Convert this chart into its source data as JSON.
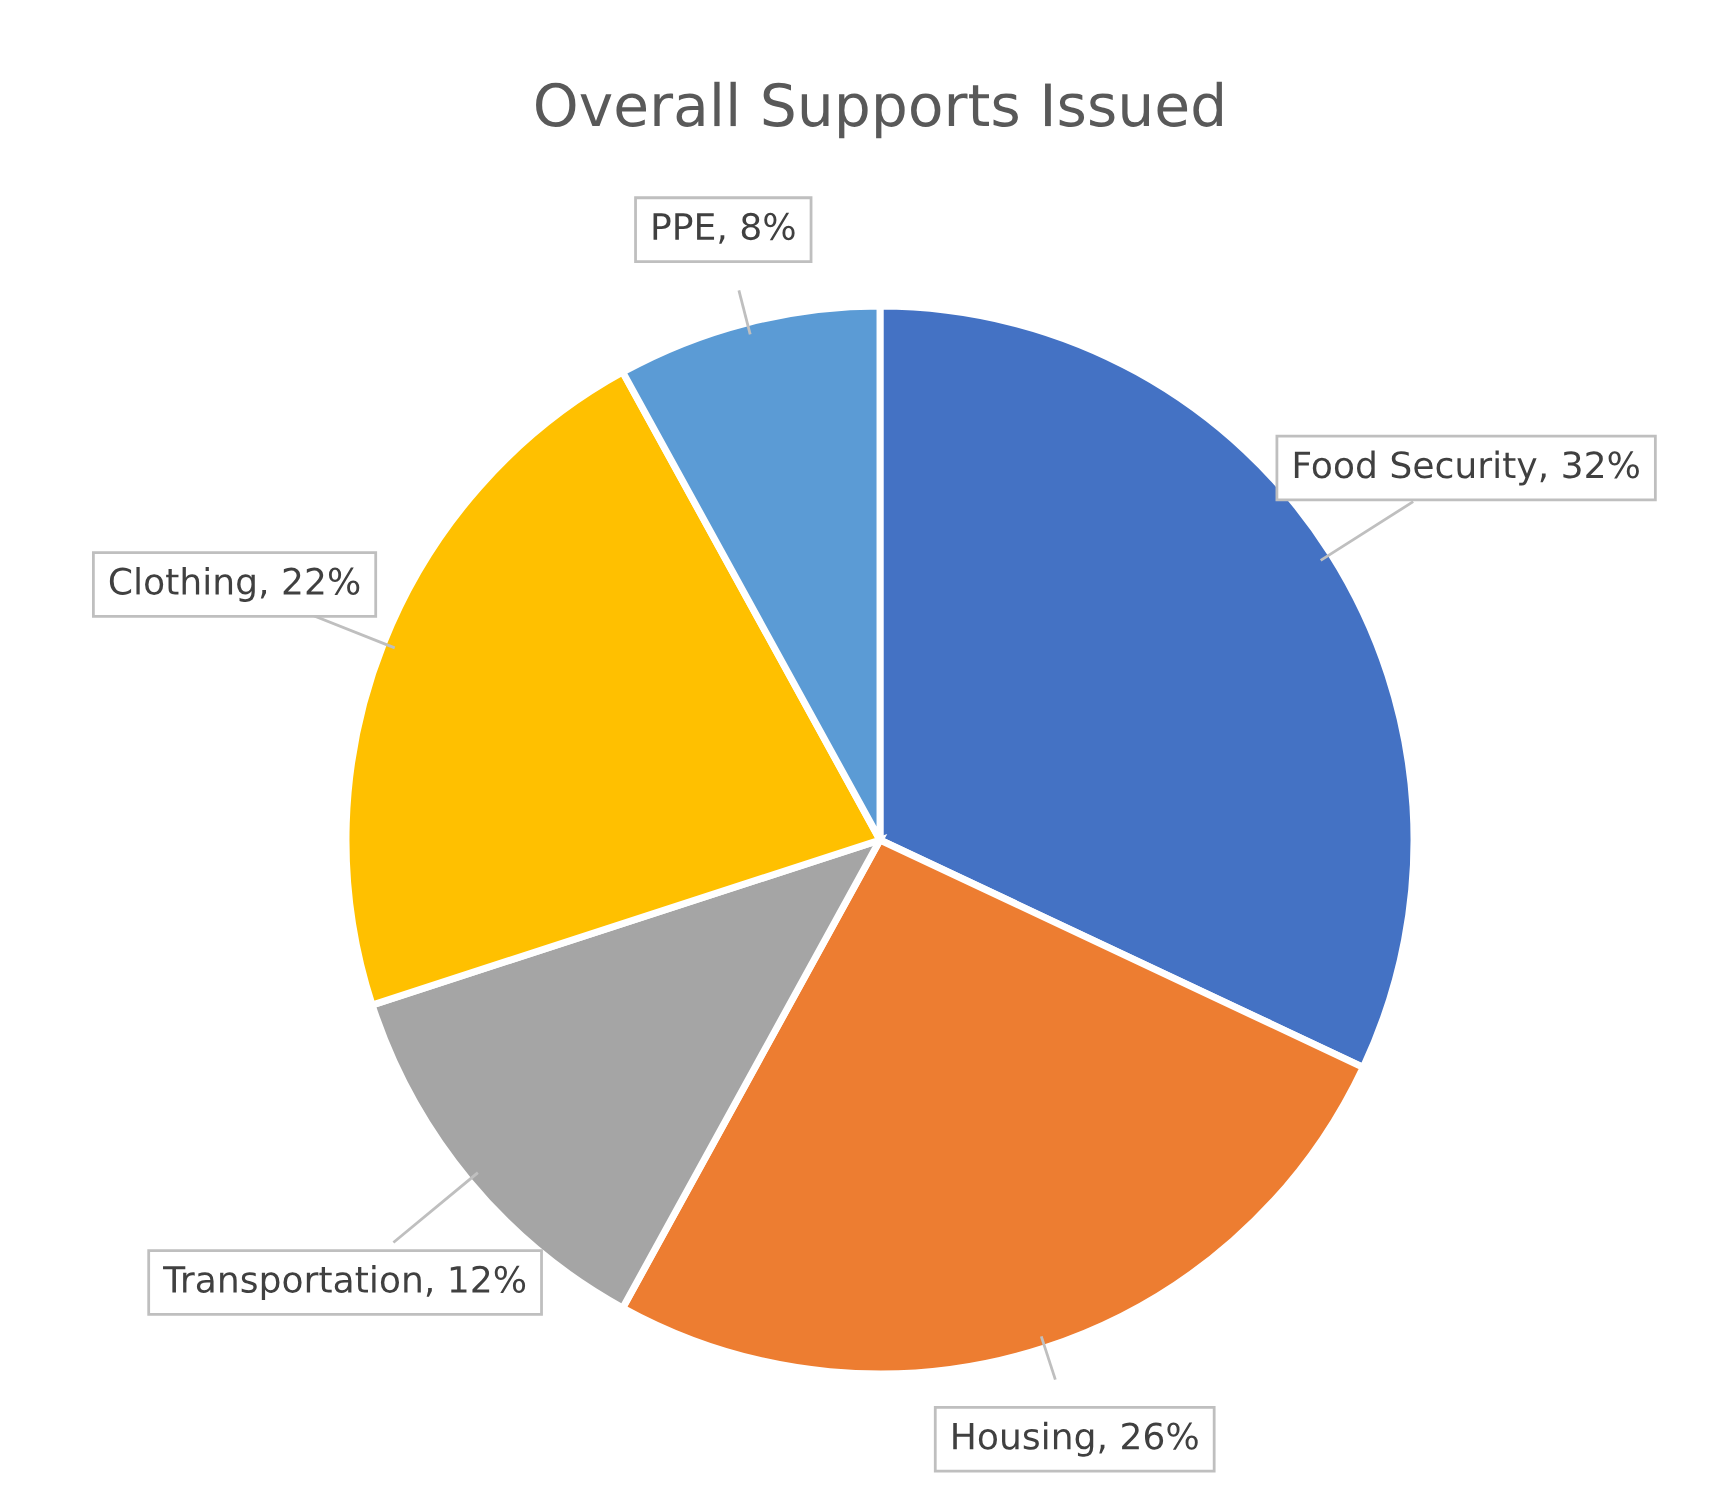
{
  "chart_data": {
    "type": "pie",
    "title": "Overall Supports Issued",
    "categories": [
      "Food Security",
      "Housing",
      "Transportation",
      "Clothing",
      "PPE"
    ],
    "values": [
      32,
      26,
      12,
      22,
      8
    ],
    "value_labels": [
      "32%",
      "26%",
      "12%",
      "22%",
      "8%"
    ],
    "colors": [
      "#4472c4",
      "#ed7d31",
      "#a5a5a5",
      "#ffc000",
      "#5b9bd5"
    ]
  }
}
